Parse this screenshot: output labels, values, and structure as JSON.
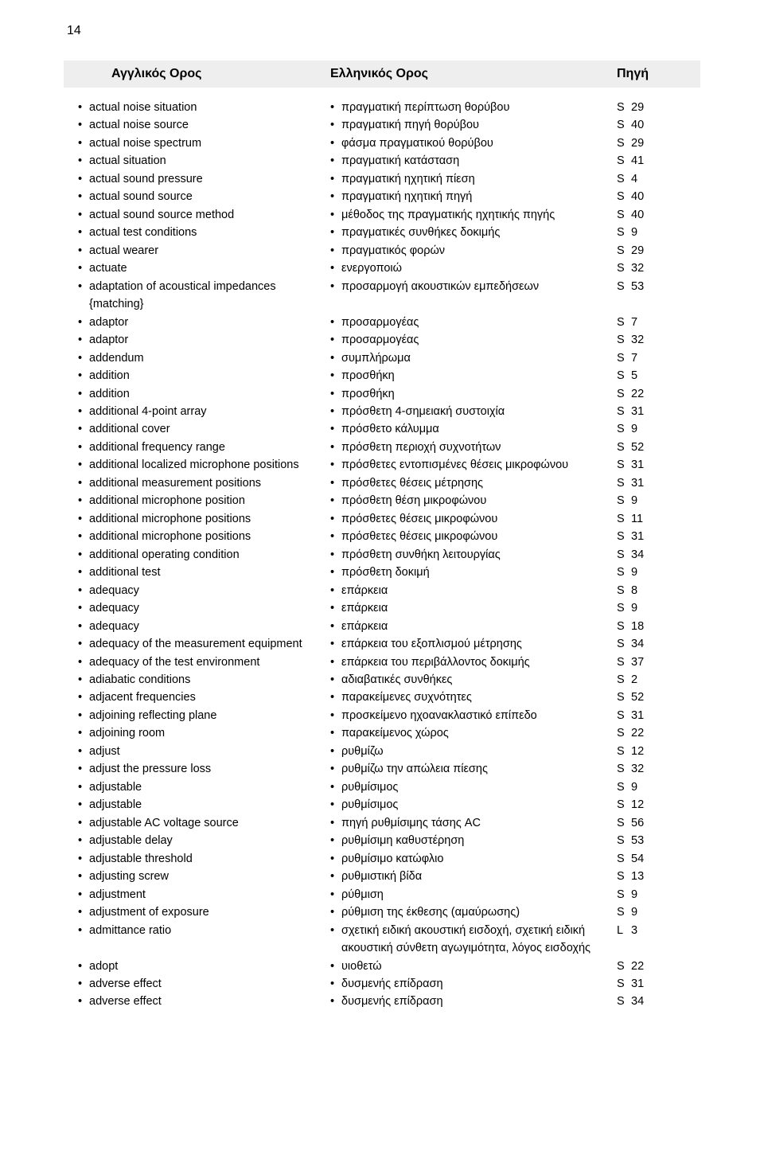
{
  "page_number": "14",
  "header": {
    "english": "Αγγλικός Ορος",
    "greek": "Ελληνικός Ορος",
    "source": "Πηγή"
  },
  "rows": [
    {
      "en": "actual noise situation",
      "el": "πραγματική περίπτωση θορύβου",
      "srcL": "S",
      "srcN": "29"
    },
    {
      "en": "actual noise source",
      "el": "πραγματική πηγή θορύβου",
      "srcL": "S",
      "srcN": "40"
    },
    {
      "en": "actual noise spectrum",
      "el": "φάσμα πραγματικού θορύβου",
      "srcL": "S",
      "srcN": "29"
    },
    {
      "en": "actual situation",
      "el": "πραγματική κατάσταση",
      "srcL": "S",
      "srcN": "41"
    },
    {
      "en": "actual sound pressure",
      "el": "πραγματική ηχητική πίεση",
      "srcL": "S",
      "srcN": "4"
    },
    {
      "en": "actual sound source",
      "el": "πραγματική ηχητική πηγή",
      "srcL": "S",
      "srcN": "40"
    },
    {
      "en": "actual sound source method",
      "el": "μέθοδος της πραγματικής ηχητικής πηγής",
      "srcL": "S",
      "srcN": "40"
    },
    {
      "en": "actual test conditions",
      "el": "πραγματικές συνθήκες δοκιμής",
      "srcL": "S",
      "srcN": "9"
    },
    {
      "en": "actual wearer",
      "el": "πραγματικός φορών",
      "srcL": "S",
      "srcN": "29"
    },
    {
      "en": "actuate",
      "el": "ενεργοποιώ",
      "srcL": "S",
      "srcN": "32"
    },
    {
      "en": "adaptation of acoustical impedances {matching}",
      "el": "προσαρμογή ακουστικών εμπεδήσεων",
      "srcL": "S",
      "srcN": "53"
    },
    {
      "en": "adaptor",
      "el": "προσαρμογέας",
      "srcL": "S",
      "srcN": "7"
    },
    {
      "en": "adaptor",
      "el": "προσαρμογέας",
      "srcL": "S",
      "srcN": "32"
    },
    {
      "en": "addendum",
      "el": "συμπλήρωμα",
      "srcL": "S",
      "srcN": "7"
    },
    {
      "en": "addition",
      "el": "προσθήκη",
      "srcL": "S",
      "srcN": "5"
    },
    {
      "en": "addition",
      "el": "προσθήκη",
      "srcL": "S",
      "srcN": "22"
    },
    {
      "en": "additional 4-point array",
      "el": "πρόσθετη 4-σημειακή συστοιχία",
      "srcL": "S",
      "srcN": "31"
    },
    {
      "en": "additional cover",
      "el": "πρόσθετο κάλυμμα",
      "srcL": "S",
      "srcN": "9"
    },
    {
      "en": "additional frequency range",
      "el": "πρόσθετη περιοχή συχνοτήτων",
      "srcL": "S",
      "srcN": "52"
    },
    {
      "en": "additional localized microphone positions",
      "el": "πρόσθετες εντοπισμένες θέσεις μικροφώνου",
      "srcL": "S",
      "srcN": "31"
    },
    {
      "en": "additional measurement positions",
      "el": "πρόσθετες θέσεις μέτρησης",
      "srcL": "S",
      "srcN": "31"
    },
    {
      "en": "additional microphone position",
      "el": "πρόσθετη θέση μικροφώνου",
      "srcL": "S",
      "srcN": "9"
    },
    {
      "en": "additional microphone positions",
      "el": "πρόσθετες θέσεις μικροφώνου",
      "srcL": "S",
      "srcN": "11"
    },
    {
      "en": "additional microphone positions",
      "el": "πρόσθετες θέσεις μικροφώνου",
      "srcL": "S",
      "srcN": "31"
    },
    {
      "en": "additional operating condition",
      "el": "πρόσθετη συνθήκη λειτουργίας",
      "srcL": "S",
      "srcN": "34"
    },
    {
      "en": "additional test",
      "el": "πρόσθετη δοκιμή",
      "srcL": "S",
      "srcN": "9"
    },
    {
      "en": "adequacy",
      "el": "επάρκεια",
      "srcL": "S",
      "srcN": "8"
    },
    {
      "en": "adequacy",
      "el": "επάρκεια",
      "srcL": "S",
      "srcN": "9"
    },
    {
      "en": "adequacy",
      "el": "επάρκεια",
      "srcL": "S",
      "srcN": "18"
    },
    {
      "en": "adequacy of the measurement equipment",
      "el": "επάρκεια του εξοπλισμού μέτρησης",
      "srcL": "S",
      "srcN": "34"
    },
    {
      "en": "adequacy of the test environment",
      "el": "επάρκεια του περιβάλλοντος δοκιμής",
      "srcL": "S",
      "srcN": "37"
    },
    {
      "en": "adiabatic conditions",
      "el": "αδιαβατικές συνθήκες",
      "srcL": "S",
      "srcN": "2"
    },
    {
      "en": "adjacent frequencies",
      "el": "παρακείμενες συχνότητες",
      "srcL": "S",
      "srcN": "52"
    },
    {
      "en": "adjoining reflecting plane",
      "el": "προσκείμενο ηχοανακλαστικό επίπεδο",
      "srcL": "S",
      "srcN": "31"
    },
    {
      "en": "adjoining room",
      "el": "παρακείμενος χώρος",
      "srcL": "S",
      "srcN": "22"
    },
    {
      "en": "adjust",
      "el": "ρυθμίζω",
      "srcL": "S",
      "srcN": "12"
    },
    {
      "en": "adjust the pressure loss",
      "el": "ρυθμίζω την απώλεια πίεσης",
      "srcL": "S",
      "srcN": "32"
    },
    {
      "en": "adjustable",
      "el": "ρυθμίσιμος",
      "srcL": "S",
      "srcN": "9"
    },
    {
      "en": "adjustable",
      "el": "ρυθμίσιμος",
      "srcL": "S",
      "srcN": "12"
    },
    {
      "en": "adjustable AC voltage source",
      "el": "πηγή ρυθμίσιμης τάσης AC",
      "srcL": "S",
      "srcN": "56"
    },
    {
      "en": "adjustable delay",
      "el": "ρυθμίσιμη καθυστέρηση",
      "srcL": "S",
      "srcN": "53"
    },
    {
      "en": "adjustable threshold",
      "el": "ρυθμίσιμο κατώφλιο",
      "srcL": "S",
      "srcN": "54"
    },
    {
      "en": "adjusting screw",
      "el": "ρυθμιστική βίδα",
      "srcL": "S",
      "srcN": "13"
    },
    {
      "en": "adjustment",
      "el": "ρύθμιση",
      "srcL": "S",
      "srcN": "9"
    },
    {
      "en": "adjustment of exposure",
      "el": "ρύθμιση της έκθεσης (αμαύρωσης)",
      "srcL": "S",
      "srcN": "9"
    },
    {
      "en": "admittance ratio",
      "el": "σχετική ειδική ακουστική εισδοχή, σχετική ειδική ακουστική σύνθετη αγωγιμότητα, λόγος εισδοχής",
      "srcL": "L",
      "srcN": "3"
    },
    {
      "en": "adopt",
      "el": "υιοθετώ",
      "srcL": "S",
      "srcN": "22"
    },
    {
      "en": "adverse effect",
      "el": "δυσμενής επίδραση",
      "srcL": "S",
      "srcN": "31"
    },
    {
      "en": "adverse effect",
      "el": "δυσμενής επίδραση",
      "srcL": "S",
      "srcN": "34"
    }
  ]
}
